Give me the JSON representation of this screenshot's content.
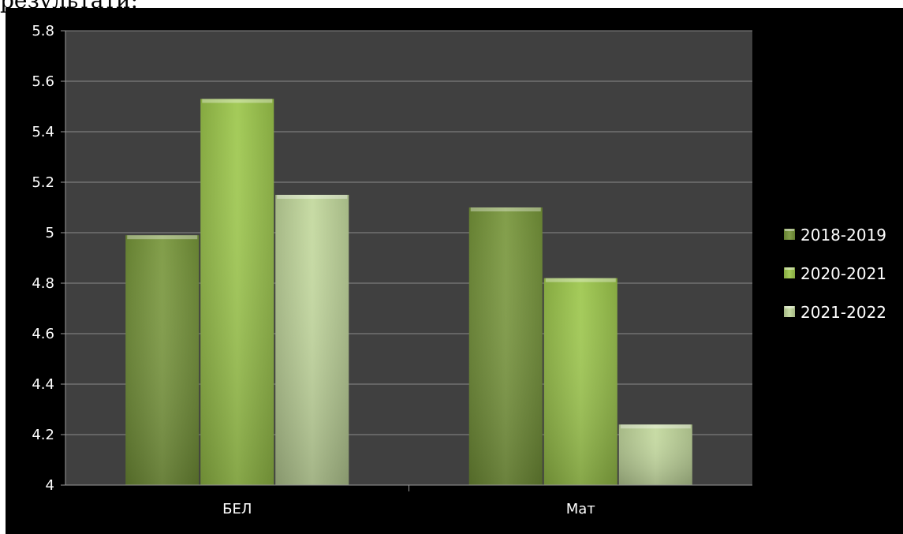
{
  "header": {
    "text": "результати:"
  },
  "chart_data": {
    "type": "bar",
    "categories": [
      "БЕЛ",
      "Мат"
    ],
    "series": [
      {
        "name": "2018-2019",
        "values": [
          4.99,
          5.1
        ],
        "color": "#77963a"
      },
      {
        "name": "2020-2021",
        "values": [
          5.53,
          4.82
        ],
        "color": "#9cc74b"
      },
      {
        "name": "2021-2022",
        "values": [
          5.15,
          4.24
        ],
        "color": "#c2d89c"
      }
    ],
    "ylim": [
      4,
      5.8
    ],
    "yticks": [
      "4",
      "4.2",
      "4.4",
      "4.6",
      "4.8",
      "5",
      "5.2",
      "5.4",
      "5.6",
      "5.8"
    ],
    "grid": true,
    "legend": "right",
    "plot_background": "#404040",
    "chart_background": "#000000"
  }
}
